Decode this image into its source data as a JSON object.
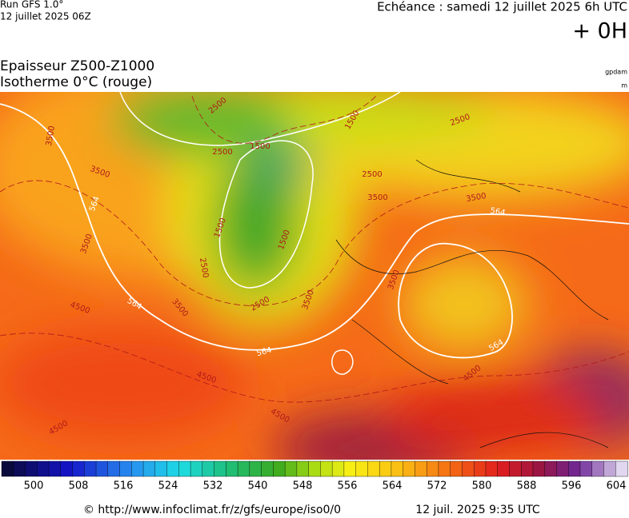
{
  "header": {
    "run": "Run GFS 1.0°",
    "run_date": "12 juillet 2025 06Z",
    "valid": "Echéance : samedi 12 juillet 2025 6h UTC",
    "lead": "+ 0H"
  },
  "title": {
    "line1": "Epaisseur Z500-Z1000",
    "line2": "Isotherme 0°C (rouge)",
    "unit1": "gpdam",
    "unit2": "m"
  },
  "map": {
    "contour_labels": [
      "564",
      "564",
      "564",
      "564",
      "564",
      "1500",
      "1500",
      "1500",
      "1500",
      "2500",
      "2500",
      "2500",
      "2500",
      "2500",
      "2500",
      "3500",
      "3500",
      "3500",
      "3500",
      "3500",
      "3500",
      "3500",
      "3500",
      "4500",
      "4500",
      "4500",
      "4500",
      "4500"
    ]
  },
  "colorbar": {
    "ticks": [
      "500",
      "508",
      "516",
      "524",
      "532",
      "540",
      "548",
      "556",
      "564",
      "572",
      "580",
      "588",
      "596",
      "604"
    ]
  },
  "footer": {
    "source": "© http://www.infoclimat.fr/z/gfs/europe/iso0/0",
    "timestamp": "12 juil. 2025  9:35 UTC"
  }
}
